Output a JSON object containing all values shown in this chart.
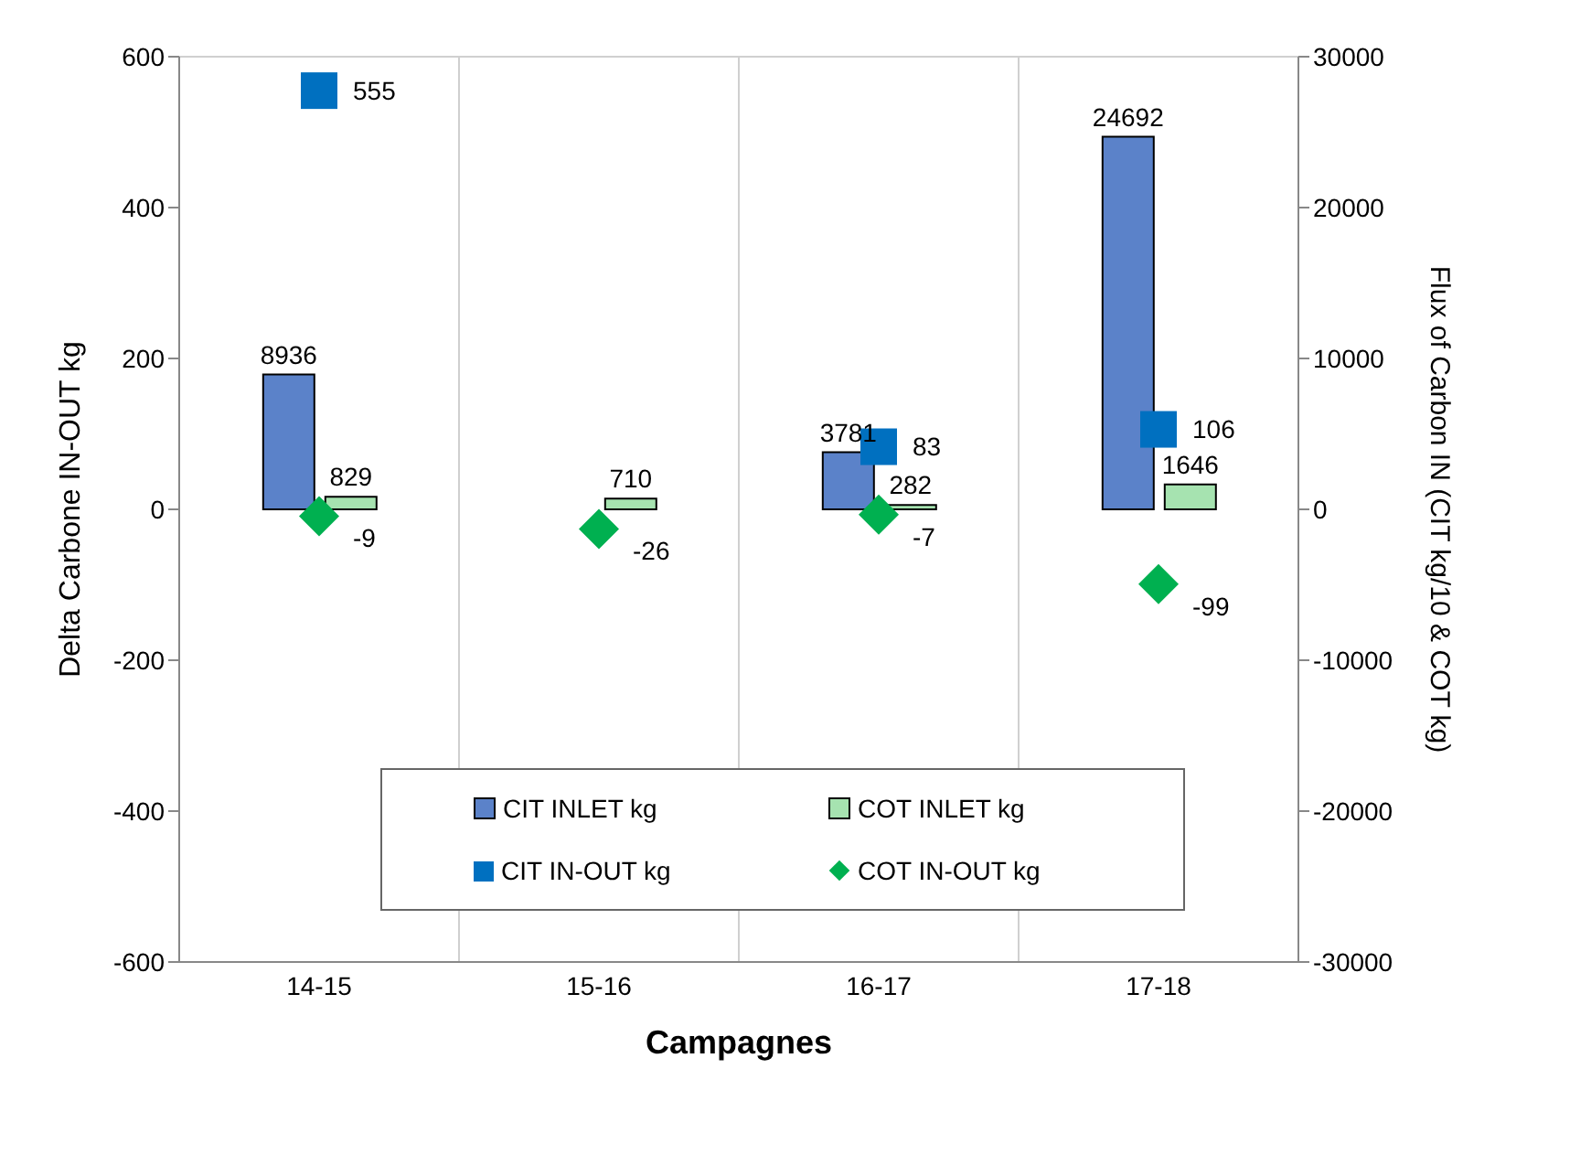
{
  "chart_data": {
    "type": "bar",
    "xlabel": "Campagnes",
    "ylabel": "Delta Carbone IN-OUT  kg",
    "y2label": "Flux of Carbon IN (CIT kg/10 & COT kg)",
    "categories": [
      "14-15",
      "15-16",
      "16-17",
      "17-18"
    ],
    "series": [
      {
        "name": "CIT INLET kg",
        "axis": "y2",
        "color": "#5b82c9",
        "values": [
          8936,
          null,
          3781,
          24692
        ]
      },
      {
        "name": "COT INLET kg",
        "axis": "y2",
        "color": "#a6e3b0",
        "values": [
          829,
          710,
          282,
          1646
        ]
      },
      {
        "name": "CIT IN-OUT kg",
        "type": "scatter",
        "marker": "square",
        "color": "#0070c0",
        "values": [
          555,
          null,
          83,
          106
        ]
      },
      {
        "name": "COT IN-OUT kg",
        "type": "scatter",
        "marker": "diamond",
        "color": "#00b050",
        "values": [
          -9,
          -26,
          -7,
          -99
        ]
      }
    ],
    "ylim": [
      -600,
      600
    ],
    "yticks": [
      -600,
      -400,
      -200,
      0,
      200,
      400,
      600
    ],
    "y2lim": [
      -30000,
      30000
    ],
    "y2ticks": [
      -30000,
      -20000,
      -10000,
      0,
      10000,
      20000,
      30000
    ],
    "grid": true,
    "legend": "bottom",
    "data_labels": true
  }
}
